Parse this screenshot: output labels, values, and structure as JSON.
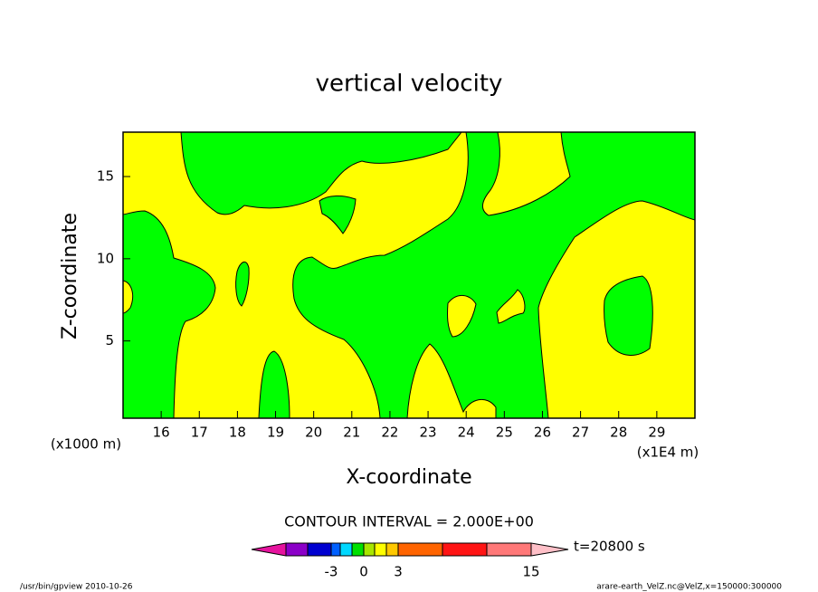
{
  "chart_data": {
    "type": "contour",
    "title": "vertical velocity",
    "xlabel": "X-coordinate",
    "ylabel": "Z-coordinate",
    "y_unit_label": "(x1000 m)",
    "x_unit_label": "(x1E4 m)",
    "xlim": [
      15,
      30
    ],
    "ylim": [
      0.3,
      17.7
    ],
    "xticks": [
      16,
      17,
      18,
      19,
      20,
      21,
      22,
      23,
      24,
      25,
      26,
      27,
      28,
      29
    ],
    "yticks": [
      5,
      10,
      15
    ],
    "contour_interval_label": "CONTOUR INTERVAL = 2.000E+00",
    "colorbar": {
      "colors": [
        "#e6139e",
        "#8b00c8",
        "#0000d0",
        "#0060ff",
        "#00d8ff",
        "#00e000",
        "#a8e600",
        "#ffff00",
        "#ffc800",
        "#ff6400",
        "#ff1414",
        "#ff7878",
        "#ffc0c8"
      ],
      "ticks": [
        -3,
        0,
        3,
        15
      ]
    },
    "time_label": "t=20800 s",
    "footer_left": "/usr/bin/gpview  2010-10-26",
    "footer_right": "arare-earth_VelZ.nc@VelZ,x=150000:300000"
  }
}
